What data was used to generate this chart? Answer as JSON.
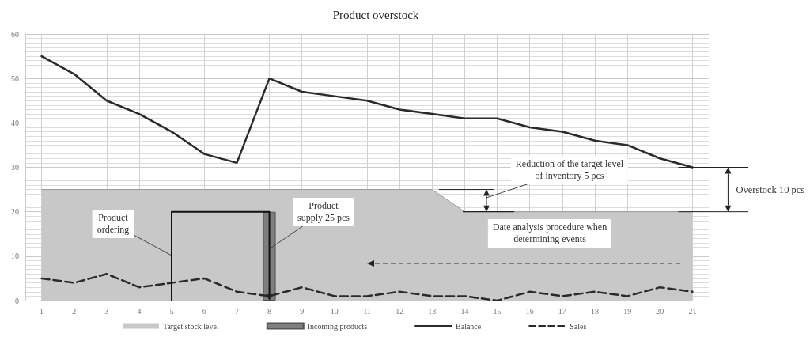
{
  "chart_data": {
    "type": "line",
    "title": "Product overstock",
    "x": [
      1,
      2,
      3,
      4,
      5,
      6,
      7,
      8,
      9,
      10,
      11,
      12,
      13,
      14,
      15,
      16,
      17,
      18,
      19,
      20,
      21
    ],
    "xlim": [
      0.5,
      21.5
    ],
    "xticks": [
      1,
      2,
      3,
      4,
      5,
      6,
      7,
      8,
      9,
      10,
      11,
      12,
      13,
      14,
      15,
      16,
      17,
      18,
      19,
      20,
      21
    ],
    "ylim": [
      0,
      60
    ],
    "yticks": [
      0,
      10,
      20,
      30,
      40,
      50,
      60
    ],
    "grid": true,
    "legend": "bottom",
    "marker": "none",
    "series": [
      {
        "name": "Target stock level",
        "type": "area",
        "color": "#c8c8c8",
        "values": [
          25,
          25,
          25,
          25,
          25,
          25,
          25,
          25,
          25,
          25,
          25,
          25,
          25,
          20,
          20,
          20,
          20,
          20,
          20,
          20,
          20
        ]
      },
      {
        "name": "Incoming products",
        "type": "bar",
        "color": "#7f7f7f",
        "x": [
          8
        ],
        "values": [
          20
        ]
      },
      {
        "name": "Balance",
        "color": "#2a2a2a",
        "line_style": "solid",
        "values": [
          55,
          51,
          45,
          42,
          38,
          33,
          31,
          50,
          47,
          46,
          45,
          43,
          42,
          41,
          41,
          39,
          38,
          36,
          35,
          32,
          30
        ]
      },
      {
        "name": "Sales",
        "color": "#2a2a2a",
        "line_style": "dashed",
        "values": [
          5,
          4,
          6,
          3,
          4,
          5,
          2,
          1,
          3,
          1,
          1,
          2,
          1,
          1,
          0,
          2,
          1,
          2,
          1,
          3,
          2
        ]
      }
    ],
    "annotations": [
      "Product\nordering",
      "Product\nsupply 25 pcs",
      "Reduction of the target level\nof inventory 5 pcs",
      "Overstock 10 pcs",
      "Date analysis procedure when\ndetermining events"
    ]
  }
}
